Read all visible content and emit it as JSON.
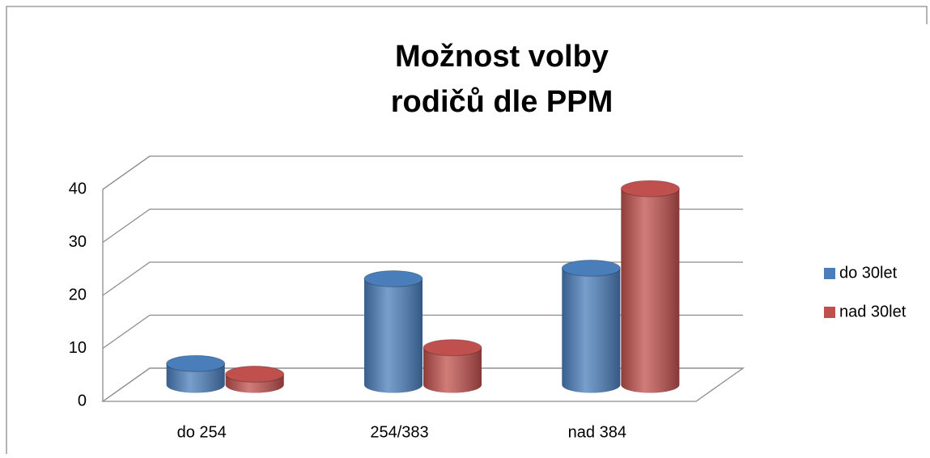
{
  "chart_data": {
    "type": "bar3d",
    "title": [
      "Možnost volby",
      "rodičů dle PPM"
    ],
    "categories": [
      "do 254",
      "254/383",
      "nad 384"
    ],
    "series": [
      {
        "name": "do 30let",
        "color": "#4a7ebb",
        "values": [
          4,
          20,
          22
        ]
      },
      {
        "name": "nad 30let",
        "color": "#c0504d",
        "values": [
          2,
          7,
          37
        ]
      }
    ],
    "ylim": [
      0,
      40
    ],
    "yticks": [
      0,
      10,
      20,
      30,
      40
    ],
    "grid": true,
    "legend": "right"
  }
}
